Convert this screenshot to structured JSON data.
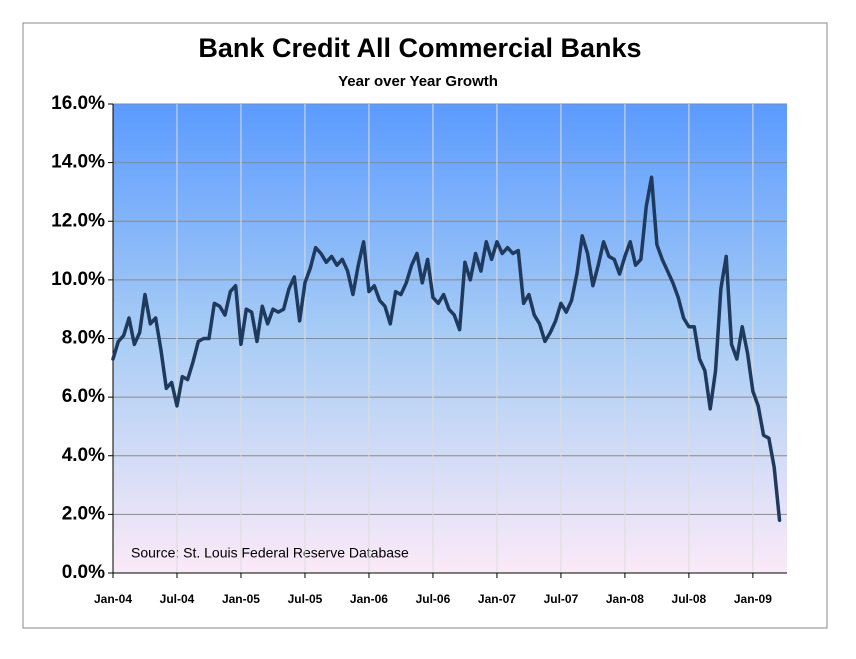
{
  "chart_data": {
    "type": "line",
    "title": "Bank Credit All Commercial Banks",
    "subtitle": "Year over Year Growth",
    "annotation": "Source: St. Louis Federal Reserve Database",
    "categories": [
      "Jan-04",
      null,
      null,
      null,
      null,
      null,
      null,
      null,
      null,
      null,
      null,
      null,
      "Jul-04",
      null,
      null,
      null,
      null,
      null,
      null,
      null,
      null,
      null,
      null,
      null,
      "Jan-05",
      null,
      null,
      null,
      null,
      null,
      null,
      null,
      null,
      null,
      null,
      null,
      "Jul-05",
      null,
      null,
      null,
      null,
      null,
      null,
      null,
      null,
      null,
      null,
      null,
      "Jan-06",
      null,
      null,
      null,
      null,
      null,
      null,
      null,
      null,
      null,
      null,
      null,
      "Jul-06",
      null,
      null,
      null,
      null,
      null,
      null,
      null,
      null,
      null,
      null,
      null,
      "Jan-07",
      null,
      null,
      null,
      null,
      null,
      null,
      null,
      null,
      null,
      null,
      null,
      "Jul-07",
      null,
      null,
      null,
      null,
      null,
      null,
      null,
      null,
      null,
      null,
      null,
      "Jan-08",
      null,
      null,
      null,
      null,
      null,
      null,
      null,
      null,
      null,
      null,
      null,
      "Jul-08",
      null,
      null,
      null,
      null,
      null,
      null,
      null,
      null,
      null,
      null,
      null,
      "Jan-09",
      null,
      null,
      null,
      null,
      null
    ],
    "values": [
      7.3,
      7.9,
      8.1,
      8.7,
      7.8,
      8.2,
      9.5,
      8.5,
      8.7,
      7.6,
      6.3,
      6.5,
      5.7,
      6.7,
      6.6,
      7.2,
      7.9,
      8.0,
      8.0,
      9.2,
      9.1,
      8.8,
      9.6,
      9.8,
      7.8,
      9.0,
      8.9,
      7.9,
      9.1,
      8.5,
      9.0,
      8.9,
      9.0,
      9.7,
      10.1,
      8.6,
      9.9,
      10.4,
      11.1,
      10.9,
      10.6,
      10.8,
      10.5,
      10.7,
      10.3,
      9.5,
      10.5,
      11.3,
      9.6,
      9.8,
      9.3,
      9.1,
      8.5,
      9.6,
      9.5,
      9.9,
      10.5,
      10.9,
      9.9,
      10.7,
      9.4,
      9.2,
      9.5,
      9.0,
      8.8,
      8.3,
      10.6,
      10.0,
      10.9,
      10.3,
      11.3,
      10.7,
      11.3,
      10.9,
      11.1,
      10.9,
      11.0,
      9.2,
      9.5,
      8.8,
      8.5,
      7.9,
      8.2,
      8.6,
      9.2,
      8.9,
      9.3,
      10.2,
      11.5,
      10.9,
      9.8,
      10.5,
      11.3,
      10.8,
      10.7,
      10.2,
      10.8,
      11.3,
      10.5,
      10.7,
      12.5,
      13.5,
      11.2,
      10.7,
      10.3,
      9.9,
      9.4,
      8.7,
      8.4,
      8.4,
      7.3,
      6.9,
      5.6,
      6.9,
      9.7,
      10.8,
      7.8,
      7.3,
      8.4,
      7.5,
      6.2,
      5.7,
      4.7,
      4.6,
      3.6,
      1.8
    ],
    "color": "#1f3a5c",
    "ylim": [
      0,
      16
    ],
    "yticks": [
      {
        "value": 0,
        "label": "0.0%"
      },
      {
        "value": 2,
        "label": "2.0%"
      },
      {
        "value": 4,
        "label": "4.0%"
      },
      {
        "value": 6,
        "label": "6.0%"
      },
      {
        "value": 8,
        "label": "8.0%"
      },
      {
        "value": 10,
        "label": "10.0%"
      },
      {
        "value": 12,
        "label": "12.0%"
      },
      {
        "value": 14,
        "label": "14.0%"
      },
      {
        "value": 16,
        "label": "16.0%"
      }
    ],
    "grid": true
  }
}
